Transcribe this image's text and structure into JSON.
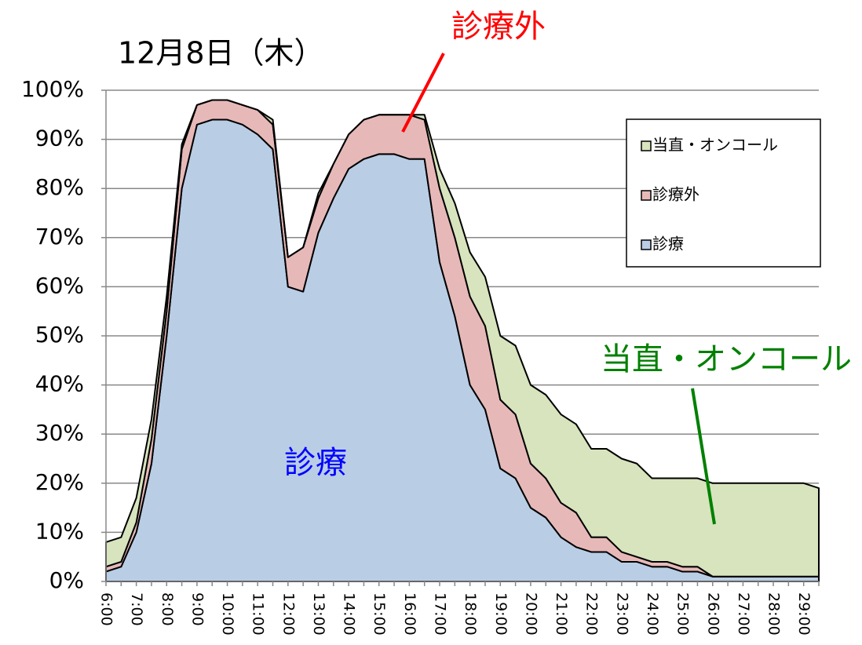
{
  "chart_data": {
    "type": "stacked_area",
    "title": "12月8日（木）",
    "categories": [
      "6:00",
      null,
      "7:00",
      null,
      "8:00",
      null,
      "9:00",
      null,
      "10:00",
      null,
      "11:00",
      null,
      "12:00",
      null,
      "13:00",
      null,
      "14:00",
      null,
      "15:00",
      null,
      "16:00",
      null,
      "17:00",
      null,
      "18:00",
      null,
      "19:00",
      null,
      "20:00",
      null,
      "21:00",
      null,
      "22:00",
      null,
      "23:00",
      null,
      "24:00",
      null,
      "25:00",
      null,
      "26:00",
      null,
      "27:00",
      null,
      "28:00",
      null,
      "29:00",
      null
    ],
    "series": [
      {
        "name": "診療",
        "color": "#b9cde5",
        "values": [
          2,
          3,
          10,
          24,
          50,
          80,
          93,
          94,
          94,
          93,
          91,
          88,
          60,
          59,
          71,
          78,
          84,
          86,
          87,
          87,
          86,
          86,
          65,
          54,
          40,
          35,
          23,
          21,
          15,
          13,
          9,
          7,
          6,
          6,
          4,
          4,
          3,
          3,
          2,
          2,
          1,
          1,
          1,
          1,
          1,
          1,
          1,
          1
        ]
      },
      {
        "name": "診療外",
        "color": "#e6b9b8",
        "values": [
          1,
          1,
          2,
          5,
          5,
          8,
          4,
          4,
          4,
          4,
          5,
          5,
          6,
          9,
          7,
          7,
          7,
          8,
          8,
          8,
          9,
          8,
          15,
          16,
          18,
          17,
          14,
          13,
          9,
          8,
          7,
          7,
          3,
          3,
          2,
          1,
          1,
          1,
          1,
          1,
          0,
          0,
          0,
          0,
          0,
          0,
          0,
          0
        ]
      },
      {
        "name": "当直・オンコール",
        "color": "#d7e4bd",
        "values": [
          5,
          5,
          5,
          4,
          3,
          1,
          0,
          0,
          0,
          0,
          0,
          1,
          0,
          0,
          1,
          0,
          0,
          0,
          0,
          0,
          0,
          1,
          4,
          7,
          9,
          10,
          13,
          14,
          16,
          17,
          18,
          18,
          18,
          18,
          19,
          19,
          17,
          17,
          18,
          18,
          19,
          19,
          19,
          19,
          19,
          19,
          19,
          18
        ]
      }
    ],
    "ylim": [
      0,
      100
    ],
    "yticks": [
      {
        "value": 0,
        "label": "0%"
      },
      {
        "value": 10,
        "label": "10%"
      },
      {
        "value": 20,
        "label": "20%"
      },
      {
        "value": 30,
        "label": "30%"
      },
      {
        "value": 40,
        "label": "40%"
      },
      {
        "value": 50,
        "label": "50%"
      },
      {
        "value": 60,
        "label": "60%"
      },
      {
        "value": 70,
        "label": "70%"
      },
      {
        "value": 80,
        "label": "80%"
      },
      {
        "value": 90,
        "label": "90%"
      },
      {
        "value": 100,
        "label": "100%"
      }
    ],
    "grid": true,
    "legend": "upper right",
    "annotations": [
      {
        "text": "診療外",
        "color": "#ff0000"
      },
      {
        "text": "当直・オンコール",
        "color": "#008000"
      },
      {
        "text": "診療",
        "color": "#0000ff"
      }
    ]
  }
}
